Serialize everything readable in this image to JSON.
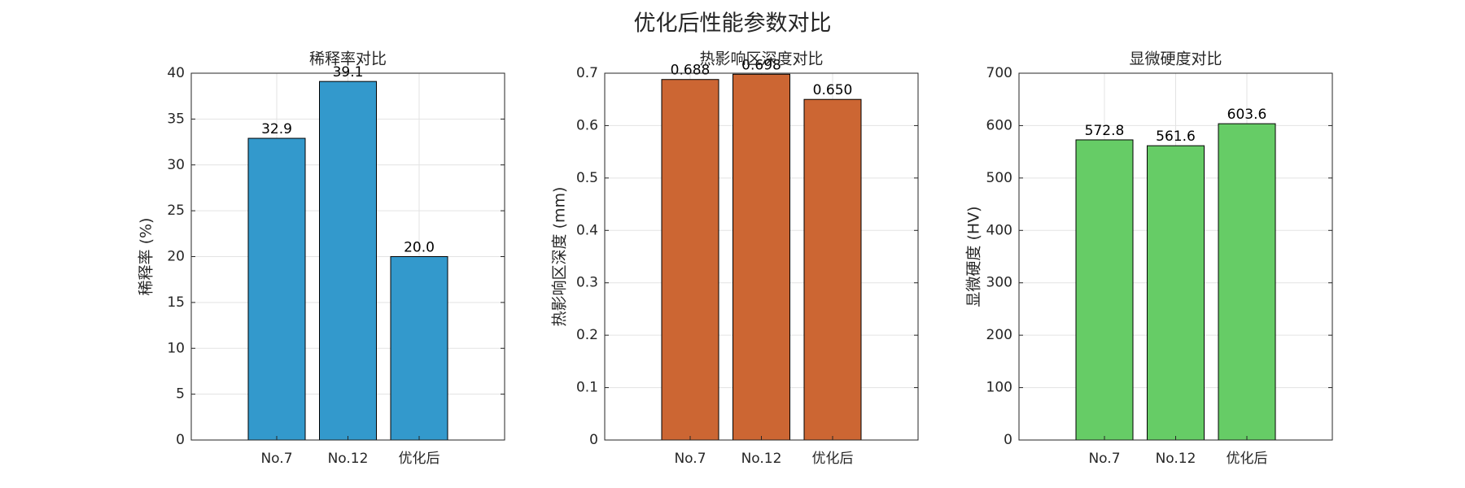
{
  "title": "优化后性能参数对比",
  "chart_data": [
    {
      "type": "bar",
      "title": "稀释率对比",
      "y_label": "稀释率 (%)",
      "categories": [
        "No.7",
        "No.12",
        "优化后"
      ],
      "values": [
        32.9,
        39.1,
        20.0
      ],
      "value_labels": [
        "32.9",
        "39.1",
        "20.0"
      ],
      "color": "#3399cc",
      "ylim": [
        0,
        40
      ],
      "yticks": [
        0,
        5,
        10,
        15,
        20,
        25,
        30,
        35,
        40
      ],
      "grid": true
    },
    {
      "type": "bar",
      "title": "热影响区深度对比",
      "y_label": "热影响区深度 (mm)",
      "categories": [
        "No.7",
        "No.12",
        "优化后"
      ],
      "values": [
        0.688,
        0.698,
        0.65
      ],
      "value_labels": [
        "0.688",
        "0.698",
        "0.650"
      ],
      "color": "#cc6633",
      "ylim": [
        0,
        0.7
      ],
      "yticks": [
        0,
        0.1,
        0.2,
        0.3,
        0.4,
        0.5,
        0.6,
        0.7
      ],
      "grid": true
    },
    {
      "type": "bar",
      "title": "显微硬度对比",
      "y_label": "显微硬度 (HV)",
      "categories": [
        "No.7",
        "No.12",
        "优化后"
      ],
      "values": [
        572.8,
        561.6,
        603.6
      ],
      "value_labels": [
        "572.8",
        "561.6",
        "603.6"
      ],
      "color": "#66cc66",
      "ylim": [
        0,
        700
      ],
      "yticks": [
        0,
        100,
        200,
        300,
        400,
        500,
        600,
        700
      ],
      "grid": true
    }
  ]
}
